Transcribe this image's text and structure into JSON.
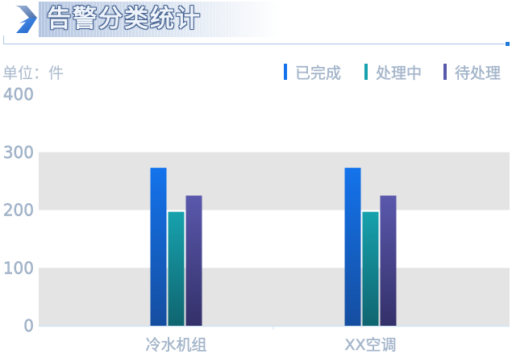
{
  "header": {
    "title": "告警分类统计",
    "icon": "chevron-arrow-icon"
  },
  "colors": {
    "grid_band": "#e4e4e4",
    "axis_line": "#cfe4f5",
    "axis_text": "#a8b8cc",
    "title_bar_accent": "#1e78d8",
    "series": [
      "#1473ec",
      "#17a2ad",
      "#5a58ac"
    ],
    "series_bottom": [
      "#154ea0",
      "#0f6570",
      "#34306a"
    ]
  },
  "chart_data": {
    "type": "bar",
    "unit_label": "单位：件",
    "categories": [
      "冷水机组",
      "XX空调"
    ],
    "series": [
      {
        "name": "已完成",
        "values": [
          273,
          273
        ]
      },
      {
        "name": "处理中",
        "values": [
          197,
          197
        ]
      },
      {
        "name": "待处理",
        "values": [
          225,
          225
        ]
      }
    ],
    "yticks": [
      "0",
      "100",
      "200",
      "300",
      "400"
    ],
    "ylim": [
      0,
      400
    ],
    "grid": true,
    "legend_position": "top-right"
  }
}
